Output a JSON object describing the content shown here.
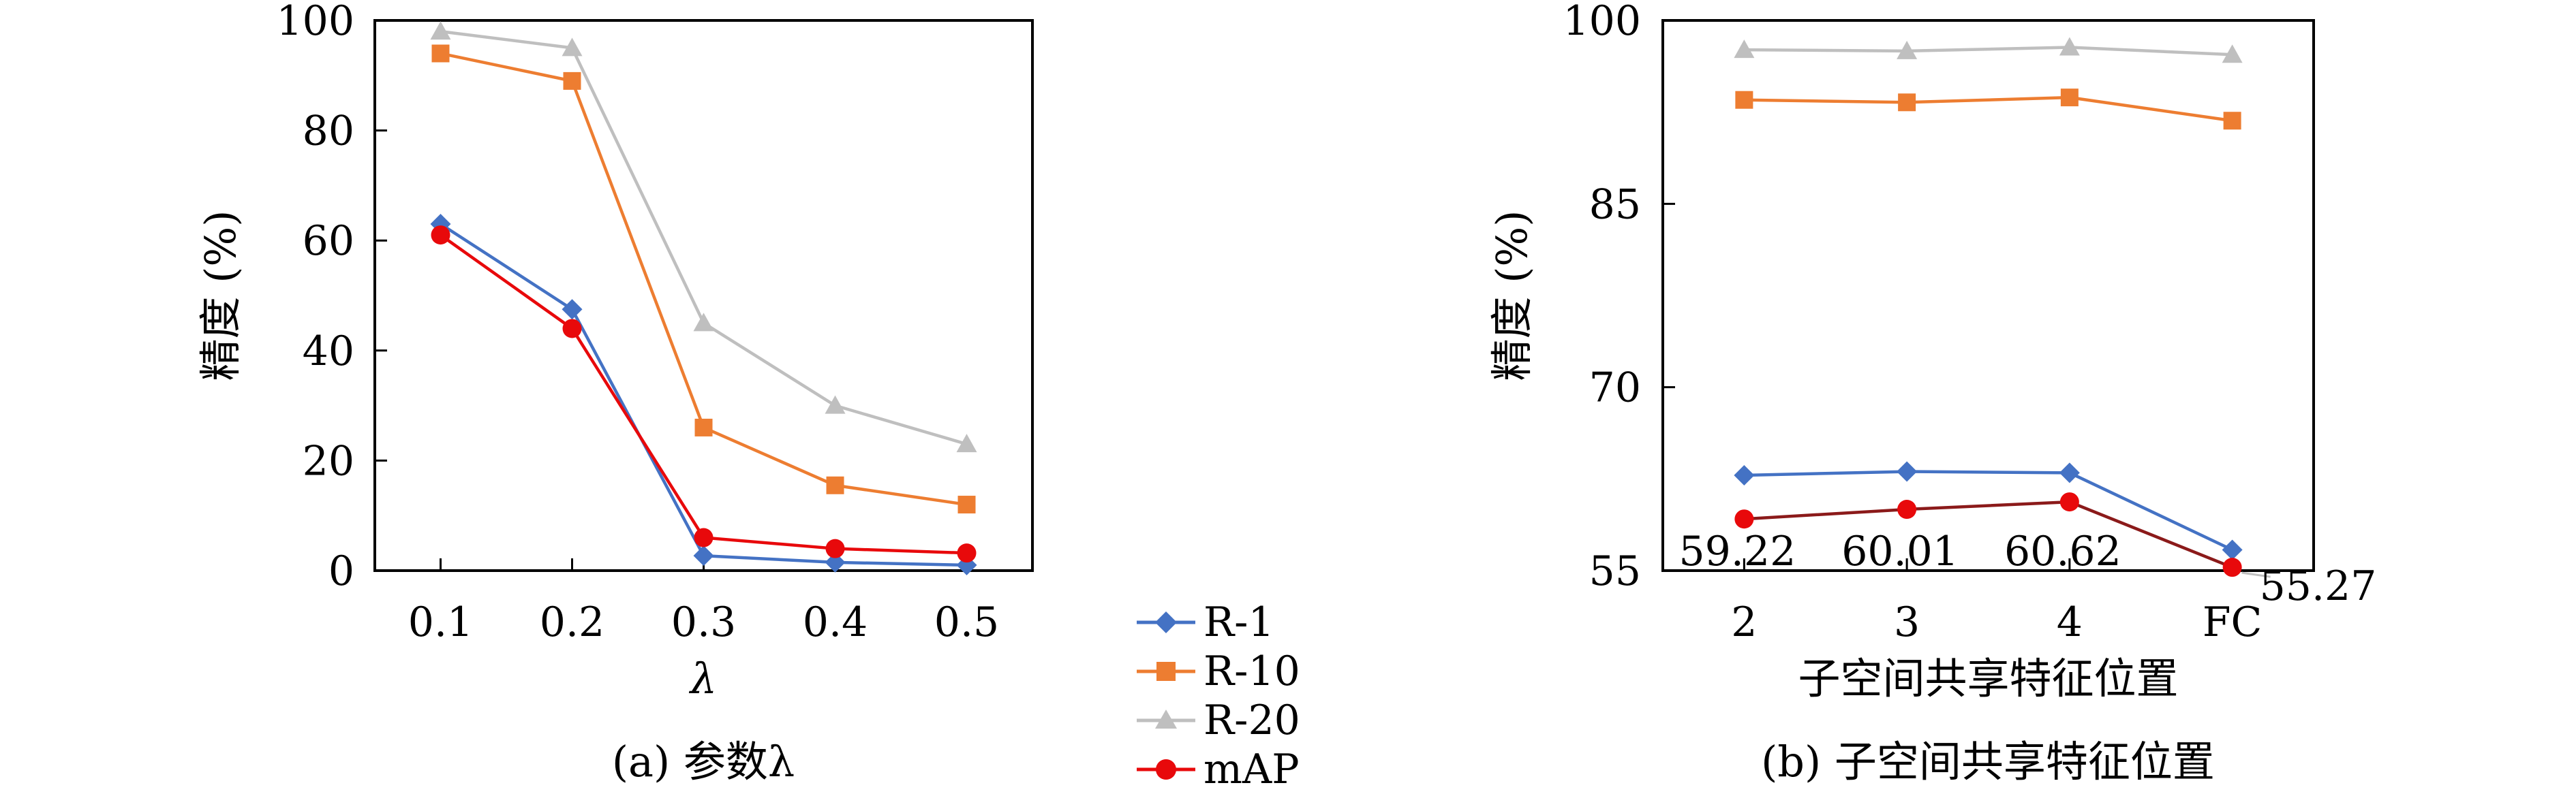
{
  "colors": {
    "r1": "#4472C4",
    "r10": "#ED7D31",
    "r20": "#BFBFBF",
    "map": "#E8090B",
    "map_line_b": "#8B1A1A"
  },
  "legend": {
    "r1": "R-1",
    "r10": "R-10",
    "r20": "R-20",
    "map": "mAP",
    "placement": "center, between panels"
  },
  "chart_data": [
    {
      "type": "line",
      "caption": "(a) 参数λ",
      "xlabel": "λ",
      "ylabel": "精度 (%)",
      "categories": [
        "0.1",
        "0.2",
        "0.3",
        "0.4",
        "0.5"
      ],
      "ylim": [
        0,
        100
      ],
      "yticks": [
        "0",
        "20",
        "40",
        "60",
        "80",
        "100"
      ],
      "grid": false,
      "series": [
        {
          "name": "R-1",
          "values": [
            63,
            47.5,
            2.7,
            1.5,
            1.0
          ]
        },
        {
          "name": "R-10",
          "values": [
            94,
            89,
            26,
            15.5,
            12
          ]
        },
        {
          "name": "R-20",
          "values": [
            98,
            95,
            45,
            30,
            23
          ]
        },
        {
          "name": "mAP",
          "values": [
            61,
            44,
            6,
            4,
            3.2
          ]
        }
      ]
    },
    {
      "type": "line",
      "caption": "(b) 子空间共享特征位置",
      "xlabel": "子空间共享特征位置",
      "ylabel": "精度 (%)",
      "categories": [
        "2",
        "3",
        "4",
        "FC"
      ],
      "ylim": [
        55,
        100
      ],
      "yticks": [
        "55",
        "70",
        "85",
        "100"
      ],
      "grid": false,
      "series": [
        {
          "name": "R-1",
          "values": [
            62.8,
            63.1,
            63.0,
            56.7
          ]
        },
        {
          "name": "R-10",
          "values": [
            93.5,
            93.3,
            93.7,
            91.8
          ]
        },
        {
          "name": "R-20",
          "values": [
            97.6,
            97.5,
            97.8,
            97.2
          ]
        },
        {
          "name": "mAP",
          "values": [
            59.22,
            60.01,
            60.62,
            55.27
          ]
        }
      ],
      "data_labels": [
        "59.22",
        "60.01",
        "60.62",
        "55.27"
      ]
    }
  ]
}
